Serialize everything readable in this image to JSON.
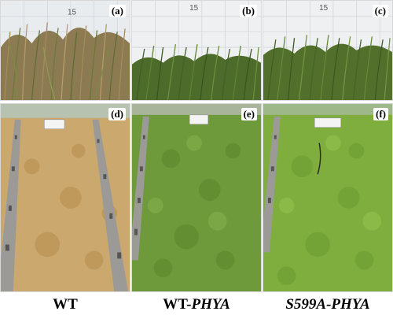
{
  "panels": {
    "a": {
      "label": "(a)",
      "scale_mark": "15"
    },
    "b": {
      "label": "(b)",
      "scale_mark": "15"
    },
    "c": {
      "label": "(c)",
      "scale_mark": "15"
    },
    "d": {
      "label": "(d)"
    },
    "e": {
      "label": "(e)"
    },
    "f": {
      "label": "(f)"
    }
  },
  "captions": {
    "wt": "WT",
    "wt_phya_prefix": "WT-",
    "wt_phya_italic": "PHYA",
    "s599a_phya": "S599A-PHYA"
  },
  "colors": {
    "dry_grass": "#c9a66b",
    "green_grass": "#6f9a3c",
    "bright_green": "#7fae3f",
    "sky_board": "#eef0f2",
    "concrete": "#9b9a96"
  }
}
